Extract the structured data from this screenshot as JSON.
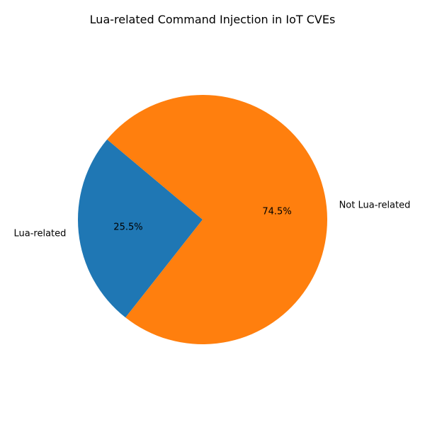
{
  "chart_data": {
    "type": "pie",
    "title": "Lua-related Command Injection in IoT CVEs",
    "categories": [
      "Lua-related",
      "Not Lua-related"
    ],
    "values": [
      25.5,
      74.5
    ],
    "value_labels": [
      "25.5%",
      "74.5%"
    ],
    "colors": [
      "#1f77b4",
      "#ff7f0e"
    ],
    "start_angle_deg": 140,
    "direction": "counterclockwise",
    "legend": "none"
  }
}
